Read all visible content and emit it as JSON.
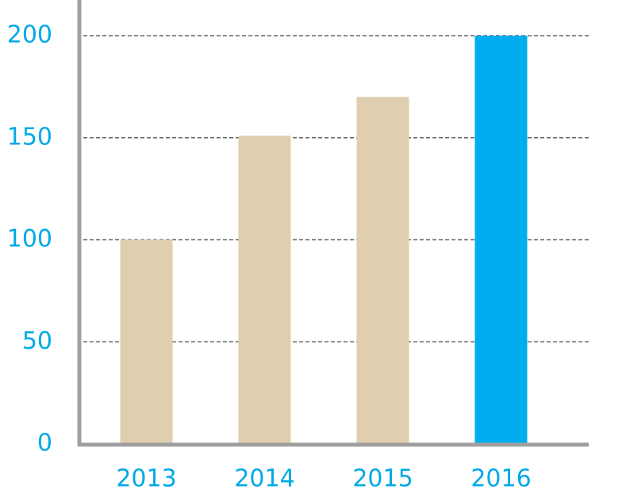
{
  "chart_data": {
    "type": "bar",
    "categories": [
      "2013",
      "2014",
      "2015",
      "2016"
    ],
    "values": [
      100,
      151,
      170,
      200
    ],
    "colors": [
      "#dfcfae",
      "#dfcfae",
      "#dfcfae",
      "#00adef"
    ],
    "ylim": [
      0,
      217.5
    ],
    "yticks": [
      0,
      50,
      100,
      150,
      200
    ],
    "grid": true
  }
}
